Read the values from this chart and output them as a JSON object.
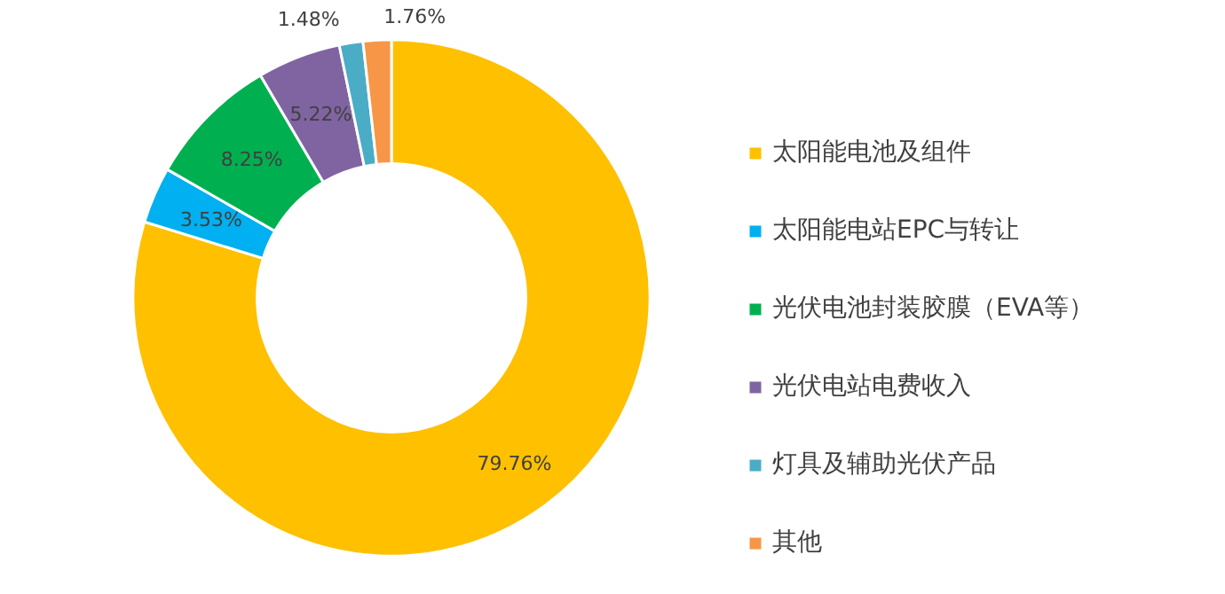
{
  "chart_data": {
    "type": "donut",
    "categories": [
      "太阳能电池及组件",
      "太阳能电站EPC与转让",
      "光伏电池封装胶膜（EVA等）",
      "光伏电站电费收入",
      "灯具及辅助光伏产品",
      "其他"
    ],
    "values": [
      79.76,
      3.53,
      8.25,
      5.22,
      1.48,
      1.76
    ],
    "colors": [
      "#ffc000",
      "#00b0f0",
      "#00b050",
      "#8064a2",
      "#4bacc6",
      "#f79646"
    ],
    "value_labels": [
      "79.76%",
      "3.53%",
      "8.25%",
      "5.22%",
      "1.48%",
      "1.76%"
    ],
    "legend": "right"
  }
}
